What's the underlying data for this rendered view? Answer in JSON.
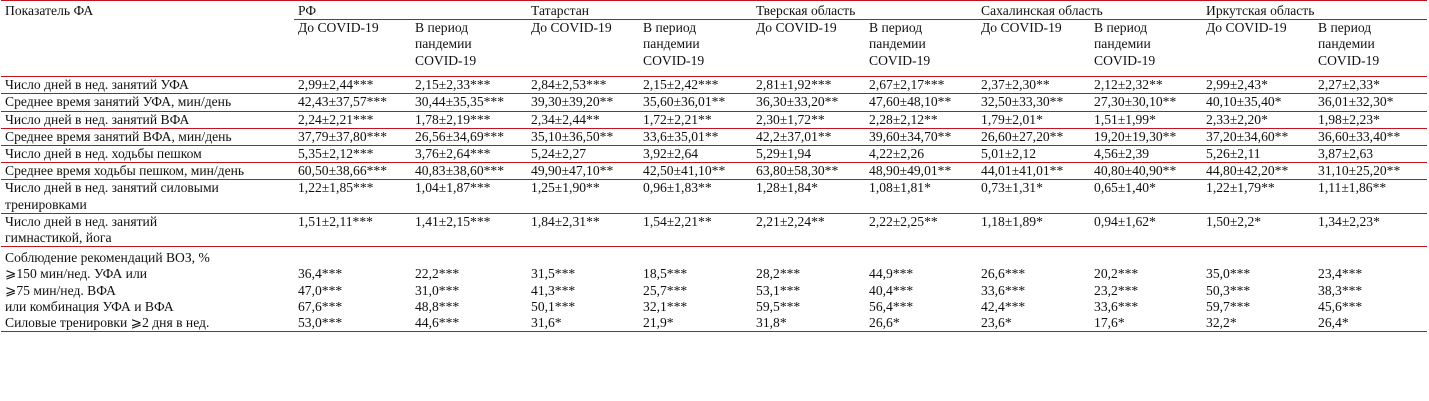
{
  "header": {
    "indicator": "Показатель ФА",
    "regions": [
      "РФ",
      "Татарстан",
      "Тверская область",
      "Сахалинская область",
      "Иркутская область"
    ],
    "before": "До COVID-19",
    "during_lines": [
      "В период",
      "пандемии",
      "COVID-19"
    ]
  },
  "rows": [
    {
      "label": "Число дней в нед. занятий УФА",
      "values": [
        "2,99±2,44***",
        "2,15±2,33***",
        "2,84±2,53***",
        "2,15±2,42***",
        "2,81±1,92***",
        "2,67±2,17***",
        "2,37±2,30**",
        "2,12±2,32**",
        "2,99±2,43*",
        "2,27±2,33*"
      ]
    },
    {
      "label": "Среднее время занятий УФА, мин/день",
      "values": [
        "42,43±37,57***",
        "30,44±35,35***",
        "39,30±39,20**",
        "35,60±36,01**",
        "36,30±33,20**",
        "47,60±48,10**",
        "32,50±33,30**",
        "27,30±30,10**",
        "40,10±35,40*",
        "36,01±32,30*"
      ]
    },
    {
      "label": "Число дней в нед. занятий ВФА",
      "values": [
        "2,24±2,21***",
        "1,78±2,19***",
        "2,34±2,44**",
        "1,72±2,21**",
        "2,30±1,72**",
        "2,28±2,12**",
        "1,79±2,01*",
        "1,51±1,99*",
        "2,33±2,20*",
        "1,98±2,23*"
      ]
    },
    {
      "label": "Среднее время занятий ВФА, мин/день",
      "values": [
        "37,79±37,80***",
        "26,56±34,69***",
        "35,10±36,50**",
        "33,6±35,01**",
        "42,2±37,01**",
        "39,60±34,70**",
        "26,60±27,20**",
        "19,20±19,30**",
        "37,20±34,60**",
        "36,60±33,40**"
      ]
    },
    {
      "label": "Число дней в нед. ходьбы пешком",
      "values": [
        "5,35±2,12***",
        "3,76±2,64***",
        "5,24±2,27",
        "3,92±2,64",
        "5,29±1,94",
        "4,22±2,26",
        "5,01±2,12",
        "4,56±2,39",
        "5,26±2,11",
        "3,87±2,63"
      ]
    },
    {
      "label": "Среднее время ходьбы пешком, мин/день",
      "values": [
        "60,50±38,66***",
        "40,83±38,60***",
        "49,90±47,10**",
        "42,50±41,10**",
        "63,80±58,30**",
        "48,90±49,01**",
        "44,01±41,01**",
        "40,80±40,90**",
        "44,80±42,20**",
        "31,10±25,20**"
      ]
    },
    {
      "label_lines": [
        "Число дней в нед. занятий силовыми",
        "тренировками"
      ],
      "values": [
        "1,22±1,85***",
        "1,04±1,87***",
        "1,25±1,90**",
        "0,96±1,83**",
        "1,28±1,84*",
        "1,08±1,81*",
        "0,73±1,31*",
        "0,65±1,40*",
        "1,22±1,79**",
        "1,11±1,86**"
      ]
    },
    {
      "label_lines": [
        "Число дней в нед. занятий",
        "гимнастикой, йога"
      ],
      "values": [
        "1,51±2,11***",
        "1,41±2,15***",
        "1,84±2,31**",
        "1,54±2,21**",
        "2,21±2,24**",
        "2,22±2,25**",
        "1,18±1,89*",
        "0,94±1,62*",
        "1,50±2,2*",
        "1,34±2,23*"
      ]
    }
  ],
  "who_group": {
    "title": "Соблюдение рекомендаций ВОЗ, %",
    "rows": [
      {
        "label": "⩾150 мин/нед. УФА или",
        "values": [
          "36,4***",
          "22,2***",
          "31,5***",
          "18,5***",
          "28,2***",
          "44,9***",
          "26,6***",
          "20,2***",
          "35,0***",
          "23,4***"
        ]
      },
      {
        "label": "⩾75 мин/нед. ВФА",
        "values": [
          "47,0***",
          "31,0***",
          "41,3***",
          "25,7***",
          "53,1***",
          "40,4***",
          "33,6***",
          "23,2***",
          "50,3***",
          "38,3***"
        ]
      },
      {
        "label": "или комбинация УФА и ВФА",
        "values": [
          "67,6***",
          "48,8***",
          "50,1***",
          "32,1***",
          "59,5***",
          "56,4***",
          "42,4***",
          "33,6***",
          "59,7***",
          "45,6***"
        ]
      },
      {
        "label": "Силовые тренировки ⩾2 дня в нед.",
        "values": [
          "53,0***",
          "44,6***",
          "31,6*",
          "21,9*",
          "31,8*",
          "26,6*",
          "23,6*",
          "17,6*",
          "32,2*",
          "26,4*"
        ]
      }
    ]
  },
  "colors": {
    "rule": "#c3141e",
    "text": "#111111"
  }
}
